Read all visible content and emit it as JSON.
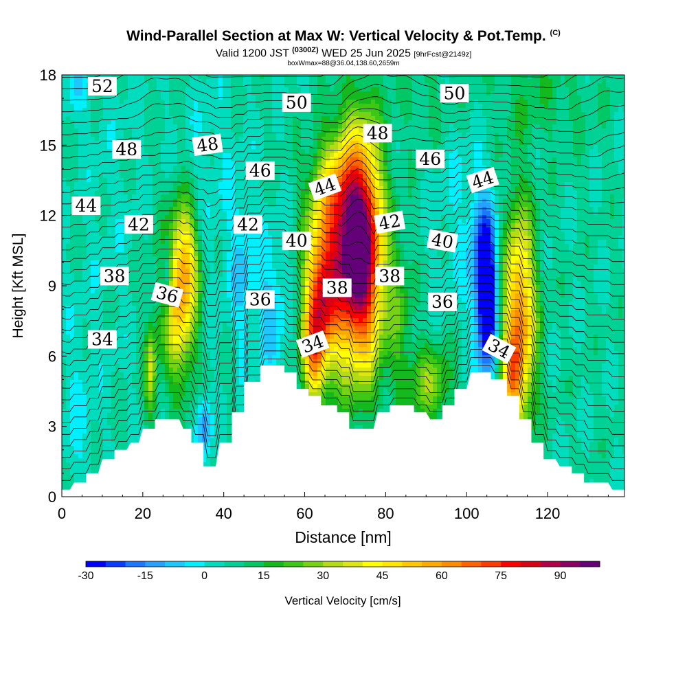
{
  "header": {
    "title": "Wind-Parallel Section at Max W: Vertical Velocity & Pot.Temp.",
    "copyright": "(C)",
    "valid_prefix": "Valid 1200 JST",
    "valid_utc": "(0300Z)",
    "valid_date": "WED 25 Jun 2025",
    "forecast_info": "[9hrFcst@2149z]",
    "box_info": "boxWmax=88@36.04,138.60,2659m"
  },
  "chart_data": {
    "type": "heatmap",
    "xlabel": "Distance [nm]",
    "ylabel": "Height [Kft MSL]",
    "xlim": [
      0,
      139
    ],
    "ylim": [
      0,
      18
    ],
    "x_ticks": [
      "0",
      "20",
      "40",
      "60",
      "80",
      "100",
      "120"
    ],
    "x_tick_values": [
      0,
      20,
      40,
      60,
      80,
      100,
      120
    ],
    "y_ticks": [
      "0",
      "3",
      "6",
      "9",
      "12",
      "15",
      "18"
    ],
    "y_tick_values": [
      0,
      3,
      6,
      9,
      12,
      15,
      18
    ],
    "colorbar": {
      "label": "Vertical Velocity [cm/s]",
      "min": -30,
      "max": 100,
      "step": 5,
      "tick_labels": [
        "-30",
        "-15",
        "0",
        "15",
        "30",
        "45",
        "60",
        "75",
        "90"
      ],
      "tick_values": [
        -30,
        -15,
        0,
        15,
        30,
        45,
        60,
        75,
        90
      ],
      "colors": [
        "#0000ff",
        "#0a3cff",
        "#1e78ff",
        "#28a0ff",
        "#1ec8ff",
        "#00f0ff",
        "#00dcbe",
        "#00d296",
        "#00c864",
        "#14b91e",
        "#3cc814",
        "#78d214",
        "#b4dc14",
        "#dce614",
        "#ffff00",
        "#ffe600",
        "#ffc800",
        "#ffaa00",
        "#ff8c00",
        "#ff6400",
        "#ff3c00",
        "#ff0000",
        "#dc0014",
        "#b4004b",
        "#8c0064",
        "#640078"
      ]
    },
    "terrain_kft": [
      [
        0,
        0.3
      ],
      [
        2,
        0.3
      ],
      [
        3,
        0.6
      ],
      [
        6,
        0.6
      ],
      [
        6,
        1.0
      ],
      [
        9,
        1.0
      ],
      [
        10,
        1.6
      ],
      [
        13,
        1.6
      ],
      [
        13,
        2.0
      ],
      [
        16,
        2.0
      ],
      [
        17,
        2.3
      ],
      [
        19,
        2.3
      ],
      [
        20,
        2.9
      ],
      [
        23,
        2.9
      ],
      [
        23,
        3.3
      ],
      [
        29,
        3.3
      ],
      [
        30,
        2.9
      ],
      [
        32,
        2.9
      ],
      [
        32,
        2.3
      ],
      [
        35,
        2.3
      ],
      [
        35,
        1.3
      ],
      [
        38,
        1.3
      ],
      [
        39,
        2.3
      ],
      [
        42,
        2.3
      ],
      [
        42,
        3.6
      ],
      [
        45,
        3.6
      ],
      [
        45,
        4.9
      ],
      [
        49,
        4.9
      ],
      [
        49,
        5.6
      ],
      [
        55,
        5.6
      ],
      [
        55,
        5.3
      ],
      [
        58,
        5.3
      ],
      [
        58,
        4.6
      ],
      [
        61,
        4.6
      ],
      [
        61,
        4.3
      ],
      [
        64,
        4.3
      ],
      [
        64,
        3.9
      ],
      [
        68,
        3.9
      ],
      [
        68,
        3.6
      ],
      [
        71,
        3.6
      ],
      [
        71,
        2.9
      ],
      [
        77,
        2.9
      ],
      [
        78,
        3.6
      ],
      [
        81,
        3.6
      ],
      [
        81,
        3.9
      ],
      [
        87,
        3.9
      ],
      [
        87,
        3.6
      ],
      [
        90,
        3.6
      ],
      [
        91,
        3.3
      ],
      [
        94,
        3.3
      ],
      [
        94,
        3.9
      ],
      [
        97,
        3.9
      ],
      [
        97,
        4.6
      ],
      [
        100,
        4.6
      ],
      [
        101,
        5.3
      ],
      [
        106,
        5.3
      ],
      [
        106,
        5.0
      ],
      [
        110,
        5.0
      ],
      [
        110,
        4.3
      ],
      [
        113,
        4.3
      ],
      [
        113,
        3.3
      ],
      [
        116,
        3.3
      ],
      [
        116,
        2.3
      ],
      [
        119,
        2.3
      ],
      [
        119,
        1.6
      ],
      [
        122,
        1.6
      ],
      [
        123,
        1.3
      ],
      [
        126,
        1.3
      ],
      [
        126,
        1.0
      ],
      [
        129,
        1.0
      ],
      [
        129,
        0.6
      ],
      [
        135,
        0.6
      ],
      [
        136,
        0.3
      ],
      [
        139,
        0.3
      ]
    ],
    "w_features": [
      {
        "x": 72,
        "z": 10.5,
        "sx": 4.0,
        "sz": 3.2,
        "w": 95
      },
      {
        "x": 64,
        "z": 8.5,
        "sx": 2.8,
        "sz": 2.2,
        "w": 65
      },
      {
        "x": 62,
        "z": 6.0,
        "sx": 1.8,
        "sz": 1.4,
        "w": 35
      },
      {
        "x": 76,
        "z": 10.5,
        "sx": 2.8,
        "sz": 3.5,
        "w": 30
      },
      {
        "x": 66,
        "z": 13.0,
        "sx": 4.0,
        "sz": 1.6,
        "w": 22
      },
      {
        "x": 29,
        "z": 8.5,
        "sx": 3.0,
        "sz": 2.4,
        "w": 48
      },
      {
        "x": 31,
        "z": 10.5,
        "sx": 2.0,
        "sz": 1.5,
        "w": 20
      },
      {
        "x": 22,
        "z": 5.3,
        "sx": 1.0,
        "sz": 1.4,
        "w": 28
      },
      {
        "x": 113,
        "z": 7.5,
        "sx": 2.8,
        "sz": 3.2,
        "w": 58
      },
      {
        "x": 111,
        "z": 5.0,
        "sx": 1.6,
        "sz": 1.2,
        "w": 25
      },
      {
        "x": 91,
        "z": 4.8,
        "sx": 4.0,
        "sz": 1.2,
        "w": 22
      },
      {
        "x": 83,
        "z": 8.0,
        "sx": 2.5,
        "sz": 2.5,
        "w": 14
      },
      {
        "x": 105,
        "z": 8.2,
        "sx": 1.8,
        "sz": 2.2,
        "w": -42
      },
      {
        "x": 104,
        "z": 10.5,
        "sx": 2.5,
        "sz": 2.0,
        "w": -16
      },
      {
        "x": 26,
        "z": 9.3,
        "sx": 0.9,
        "sz": 1.3,
        "w": -24
      },
      {
        "x": 35,
        "z": 3.0,
        "sx": 1.3,
        "sz": 1.0,
        "w": -20
      },
      {
        "x": 52,
        "z": 8.0,
        "sx": 2.5,
        "sz": 2.2,
        "w": -13
      },
      {
        "x": 45,
        "z": 9.5,
        "sx": 2.5,
        "sz": 2.5,
        "w": -10
      },
      {
        "x": 4,
        "z": 3.5,
        "sx": 3.0,
        "sz": 3.0,
        "w": -6
      },
      {
        "x": 37,
        "z": 13.0,
        "sx": 6.0,
        "sz": 4.0,
        "w": -5
      },
      {
        "x": 98,
        "z": 12.5,
        "sx": 5.0,
        "sz": 4.0,
        "w": -5
      },
      {
        "x": 12,
        "z": 12.0,
        "sx": 6.0,
        "sz": 6.0,
        "w": -3
      },
      {
        "x": 118,
        "z": 17.0,
        "sx": 10.0,
        "sz": 1.5,
        "w": 7
      },
      {
        "x": 90,
        "z": 17.0,
        "sx": 6.0,
        "sz": 1.5,
        "w": 6
      },
      {
        "x": 4,
        "z": 17.5,
        "sx": 3.0,
        "sz": 1.0,
        "w": -8
      }
    ],
    "theta_contours": {
      "line_color": "#000000",
      "labels": [
        {
          "text": "52",
          "x": 10,
          "z": 17.5,
          "angle": 0
        },
        {
          "text": "50",
          "x": 58,
          "z": 16.8,
          "angle": 0
        },
        {
          "text": "50",
          "x": 97,
          "z": 17.2,
          "angle": 0
        },
        {
          "text": "48",
          "x": 16,
          "z": 14.8,
          "angle": 0
        },
        {
          "text": "48",
          "x": 36,
          "z": 15.0,
          "angle": -8
        },
        {
          "text": "48",
          "x": 78,
          "z": 15.5,
          "angle": 0
        },
        {
          "text": "46",
          "x": 49,
          "z": 13.9,
          "angle": 0
        },
        {
          "text": "46",
          "x": 91,
          "z": 14.4,
          "angle": 0
        },
        {
          "text": "44",
          "x": 6,
          "z": 12.4,
          "angle": 0
        },
        {
          "text": "44",
          "x": 65,
          "z": 13.2,
          "angle": -20
        },
        {
          "text": "44",
          "x": 104,
          "z": 13.5,
          "angle": -18
        },
        {
          "text": "42",
          "x": 19,
          "z": 11.6,
          "angle": 0
        },
        {
          "text": "42",
          "x": 46,
          "z": 11.6,
          "angle": 0
        },
        {
          "text": "42",
          "x": 81,
          "z": 11.7,
          "angle": -10
        },
        {
          "text": "40",
          "x": 58,
          "z": 10.9,
          "angle": 0
        },
        {
          "text": "40",
          "x": 94,
          "z": 10.9,
          "angle": 10
        },
        {
          "text": "38",
          "x": 13,
          "z": 9.4,
          "angle": 0
        },
        {
          "text": "38",
          "x": 68,
          "z": 8.9,
          "angle": 0
        },
        {
          "text": "38",
          "x": 81,
          "z": 9.4,
          "angle": 0
        },
        {
          "text": "36",
          "x": 26,
          "z": 8.6,
          "angle": 15
        },
        {
          "text": "36",
          "x": 49,
          "z": 8.4,
          "angle": 0
        },
        {
          "text": "36",
          "x": 94,
          "z": 8.3,
          "angle": 0
        },
        {
          "text": "34",
          "x": 10,
          "z": 6.7,
          "angle": 0
        },
        {
          "text": "34",
          "x": 62,
          "z": 6.5,
          "angle": -20
        },
        {
          "text": "34",
          "x": 108,
          "z": 6.3,
          "angle": 28
        }
      ]
    }
  }
}
